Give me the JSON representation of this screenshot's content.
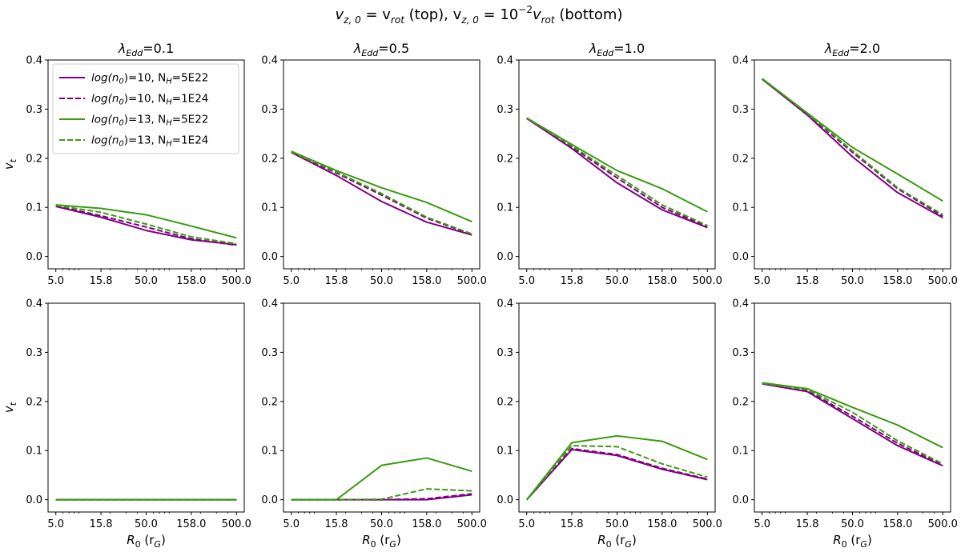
{
  "figure": {
    "title_parts": {
      "a": "v",
      "a_sub": "z, 0",
      "b": " = v",
      "b_sub": "rot",
      "c": " (top), v",
      "c_sub": "z, 0",
      "d": " = 10",
      "d_sup": "−2",
      "e": "v",
      "e_sub": "rot",
      "f": " (bottom)"
    }
  },
  "colors": {
    "purple": "#800080",
    "green": "#3a9a10"
  },
  "chart_data": {
    "type": "line",
    "xscale": "log",
    "xlim": [
      4.1,
      610
    ],
    "ylim": [
      -0.025,
      0.4
    ],
    "xticks": [
      5.0,
      15.8,
      50.0,
      158.0,
      500.0
    ],
    "xtick_labels": [
      "5.0",
      "15.8",
      "50.0",
      "158.0",
      "500.0"
    ],
    "yticks": [
      0.0,
      0.1,
      0.2,
      0.3,
      0.4
    ],
    "ytick_labels": [
      "0.0",
      "0.1",
      "0.2",
      "0.3",
      "0.4"
    ],
    "x": [
      5.0,
      15.8,
      50.0,
      158.0,
      500.0
    ],
    "ylabel": {
      "base": "v",
      "sub": "t"
    },
    "xlabel": {
      "base": "R",
      "sub": "0",
      "mid": " (r",
      "sub2": "G",
      "end": ")"
    },
    "column_titles": [
      {
        "sym": "λ",
        "sub": "Edd",
        "value": "=0.1"
      },
      {
        "sym": "λ",
        "sub": "Edd",
        "value": "=0.5"
      },
      {
        "sym": "λ",
        "sub": "Edd",
        "value": "=1.0"
      },
      {
        "sym": "λ",
        "sub": "Edd",
        "value": "=2.0"
      }
    ],
    "legend": [
      {
        "pre": "log(n",
        "pre_sub": "0",
        "mid": ")=10, N",
        "mid_sub": "H",
        "end": "=5E22",
        "color": "purple",
        "dash": false
      },
      {
        "pre": "log(n",
        "pre_sub": "0",
        "mid": ")=10, N",
        "mid_sub": "H",
        "end": "=1E24",
        "color": "purple",
        "dash": true
      },
      {
        "pre": "log(n",
        "pre_sub": "0",
        "mid": ")=13, N",
        "mid_sub": "H",
        "end": "=5E22",
        "color": "green",
        "dash": false
      },
      {
        "pre": "log(n",
        "pre_sub": "0",
        "mid": ")=13, N",
        "mid_sub": "H",
        "end": "=1E24",
        "color": "green",
        "dash": true
      }
    ],
    "panels": [
      {
        "row": "top",
        "col": 0,
        "series": [
          {
            "name": "log(n0)=10, NH=5E22",
            "color": "purple",
            "dash": false,
            "y": [
              0.102,
              0.08,
              0.053,
              0.034,
              0.024
            ]
          },
          {
            "name": "log(n0)=10, NH=1E24",
            "color": "purple",
            "dash": true,
            "y": [
              0.103,
              0.083,
              0.06,
              0.036,
              0.023
            ]
          },
          {
            "name": "log(n0)=13, NH=5E22",
            "color": "green",
            "dash": false,
            "y": [
              0.105,
              0.098,
              0.085,
              0.062,
              0.038
            ]
          },
          {
            "name": "log(n0)=13, NH=1E24",
            "color": "green",
            "dash": true,
            "y": [
              0.104,
              0.09,
              0.066,
              0.04,
              0.026
            ]
          }
        ]
      },
      {
        "row": "top",
        "col": 1,
        "series": [
          {
            "name": "log(n0)=10, NH=5E22",
            "color": "purple",
            "dash": false,
            "y": [
              0.212,
              0.165,
              0.112,
              0.07,
              0.044
            ]
          },
          {
            "name": "log(n0)=10, NH=1E24",
            "color": "purple",
            "dash": true,
            "y": [
              0.213,
              0.17,
              0.125,
              0.078,
              0.045
            ]
          },
          {
            "name": "log(n0)=13, NH=5E22",
            "color": "green",
            "dash": false,
            "y": [
              0.214,
              0.175,
              0.14,
              0.11,
              0.071
            ]
          },
          {
            "name": "log(n0)=13, NH=1E24",
            "color": "green",
            "dash": true,
            "y": [
              0.213,
              0.172,
              0.128,
              0.08,
              0.046
            ]
          }
        ]
      },
      {
        "row": "top",
        "col": 2,
        "series": [
          {
            "name": "log(n0)=10, NH=5E22",
            "color": "purple",
            "dash": false,
            "y": [
              0.281,
              0.22,
              0.15,
              0.095,
              0.059
            ]
          },
          {
            "name": "log(n0)=10, NH=1E24",
            "color": "purple",
            "dash": true,
            "y": [
              0.281,
              0.223,
              0.16,
              0.1,
              0.061
            ]
          },
          {
            "name": "log(n0)=13, NH=5E22",
            "color": "green",
            "dash": false,
            "y": [
              0.282,
              0.228,
              0.175,
              0.138,
              0.091
            ]
          },
          {
            "name": "log(n0)=13, NH=1E24",
            "color": "green",
            "dash": true,
            "y": [
              0.282,
              0.225,
              0.165,
              0.105,
              0.063
            ]
          }
        ]
      },
      {
        "row": "top",
        "col": 3,
        "series": [
          {
            "name": "log(n0)=10, NH=5E22",
            "color": "purple",
            "dash": false,
            "y": [
              0.361,
              0.288,
              0.203,
              0.13,
              0.079
            ]
          },
          {
            "name": "log(n0)=10, NH=1E24",
            "color": "purple",
            "dash": true,
            "y": [
              0.361,
              0.29,
              0.212,
              0.138,
              0.082
            ]
          },
          {
            "name": "log(n0)=13, NH=5E22",
            "color": "green",
            "dash": false,
            "y": [
              0.362,
              0.292,
              0.222,
              0.168,
              0.113
            ]
          },
          {
            "name": "log(n0)=13, NH=1E24",
            "color": "green",
            "dash": true,
            "y": [
              0.362,
              0.291,
              0.215,
              0.14,
              0.085
            ]
          }
        ]
      },
      {
        "row": "bottom",
        "col": 0,
        "series": [
          {
            "name": "log(n0)=10, NH=5E22",
            "color": "purple",
            "dash": false,
            "y": [
              0.0,
              0.0,
              0.0,
              0.0,
              0.0
            ]
          },
          {
            "name": "log(n0)=10, NH=1E24",
            "color": "purple",
            "dash": true,
            "y": [
              0.0,
              0.0,
              0.0,
              0.0,
              0.0
            ]
          },
          {
            "name": "log(n0)=13, NH=5E22",
            "color": "green",
            "dash": false,
            "y": [
              0.0,
              0.0,
              0.0,
              0.0,
              0.0
            ]
          },
          {
            "name": "log(n0)=13, NH=1E24",
            "color": "green",
            "dash": true,
            "y": [
              0.0,
              0.0,
              0.0,
              0.0,
              0.0
            ]
          }
        ]
      },
      {
        "row": "bottom",
        "col": 1,
        "series": [
          {
            "name": "log(n0)=10, NH=5E22",
            "color": "purple",
            "dash": false,
            "y": [
              0.0,
              0.0,
              0.0,
              0.0,
              0.01
            ]
          },
          {
            "name": "log(n0)=10, NH=1E24",
            "color": "purple",
            "dash": true,
            "y": [
              0.0,
              0.0,
              0.0,
              0.002,
              0.012
            ]
          },
          {
            "name": "log(n0)=13, NH=5E22",
            "color": "green",
            "dash": false,
            "y": [
              0.0,
              0.0,
              0.07,
              0.085,
              0.058
            ]
          },
          {
            "name": "log(n0)=13, NH=1E24",
            "color": "green",
            "dash": true,
            "y": [
              0.0,
              0.0,
              0.001,
              0.022,
              0.018
            ]
          }
        ]
      },
      {
        "row": "bottom",
        "col": 2,
        "series": [
          {
            "name": "log(n0)=10, NH=5E22",
            "color": "purple",
            "dash": false,
            "y": [
              0.0,
              0.102,
              0.09,
              0.062,
              0.041
            ]
          },
          {
            "name": "log(n0)=10, NH=1E24",
            "color": "purple",
            "dash": true,
            "y": [
              0.0,
              0.104,
              0.092,
              0.064,
              0.042
            ]
          },
          {
            "name": "log(n0)=13, NH=5E22",
            "color": "green",
            "dash": false,
            "y": [
              0.0,
              0.116,
              0.13,
              0.119,
              0.082
            ]
          },
          {
            "name": "log(n0)=13, NH=1E24",
            "color": "green",
            "dash": true,
            "y": [
              0.0,
              0.11,
              0.108,
              0.073,
              0.046
            ]
          }
        ]
      },
      {
        "row": "bottom",
        "col": 3,
        "series": [
          {
            "name": "log(n0)=10, NH=5E22",
            "color": "purple",
            "dash": false,
            "y": [
              0.236,
              0.22,
              0.165,
              0.11,
              0.069
            ]
          },
          {
            "name": "log(n0)=10, NH=1E24",
            "color": "purple",
            "dash": true,
            "y": [
              0.237,
              0.222,
              0.17,
              0.115,
              0.07
            ]
          },
          {
            "name": "log(n0)=13, NH=5E22",
            "color": "green",
            "dash": false,
            "y": [
              0.238,
              0.226,
              0.188,
              0.152,
              0.106
            ]
          },
          {
            "name": "log(n0)=13, NH=1E24",
            "color": "green",
            "dash": true,
            "y": [
              0.237,
              0.224,
              0.178,
              0.12,
              0.073
            ]
          }
        ]
      }
    ]
  }
}
